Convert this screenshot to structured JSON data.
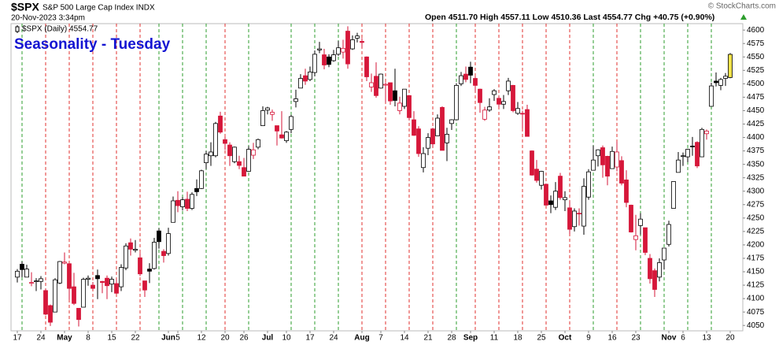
{
  "chart_data": {
    "type": "candlestick",
    "symbol": "$SPX",
    "name": "S&P 500 Large Cap Index INDX",
    "timestamp": "20-Nov-2023 3:34pm",
    "quote": "Open 4511.70 High 4557.11 Low 4510.36 Last 4554.77 Chg +40.75 (+0.90%)",
    "watermark": "© StockCharts.com",
    "legend": "$SPX (Daily) 4554.77",
    "title": "Seasonality - Tuesday",
    "up_color": "#000000",
    "down_color": "#d6173a",
    "last_color": "#f2e34a",
    "title_color": "#1414d2",
    "tuesday_up_color": "#2e9e2e",
    "tuesday_down_color": "#e0302f",
    "ylim": [
      4040,
      4612
    ],
    "yticks": [
      4050,
      4075,
      4100,
      4125,
      4150,
      4175,
      4200,
      4225,
      4250,
      4275,
      4300,
      4325,
      4350,
      4375,
      4400,
      4425,
      4450,
      4475,
      4500,
      4525,
      4550,
      4575,
      4600
    ],
    "tuesdays": [
      1,
      6,
      11,
      16,
      21,
      26,
      30,
      35,
      40,
      44,
      49,
      58,
      63,
      68,
      73,
      78,
      83,
      88,
      93,
      97,
      102,
      107,
      112,
      117,
      122,
      127,
      132,
      137,
      142,
      147
    ],
    "categories": [
      "17",
      null,
      null,
      null,
      null,
      "24",
      null,
      null,
      null,
      null,
      "May",
      null,
      null,
      null,
      null,
      "8",
      null,
      null,
      null,
      null,
      "15",
      null,
      null,
      null,
      null,
      "22",
      null,
      null,
      null,
      null,
      null,
      null,
      "Jun",
      null,
      "5",
      null,
      null,
      null,
      null,
      "12",
      null,
      null,
      null,
      null,
      "20",
      null,
      null,
      null,
      "26",
      null,
      null,
      null,
      null,
      "Jul",
      null,
      null,
      null,
      "10",
      null,
      null,
      null,
      null,
      "17",
      null,
      null,
      null,
      null,
      "24",
      null,
      null,
      null,
      null,
      null,
      "Aug",
      null,
      null,
      null,
      "7",
      null,
      null,
      null,
      null,
      "14",
      null,
      null,
      null,
      null,
      "21",
      null,
      null,
      null,
      null,
      "28",
      null,
      null,
      null,
      "Sep",
      null,
      null,
      null,
      null,
      "11",
      null,
      null,
      null,
      null,
      "18",
      null,
      null,
      null,
      null,
      "25",
      null,
      null,
      null,
      null,
      "Oct",
      null,
      null,
      null,
      null,
      "9",
      null,
      null,
      null,
      null,
      "16",
      null,
      null,
      null,
      null,
      "23",
      null,
      null,
      null,
      null,
      null,
      null,
      "Nov",
      null,
      null,
      "6",
      null,
      null,
      null,
      null,
      "13",
      null,
      null,
      null,
      null,
      "20"
    ],
    "candles": [
      [
        4140,
        4155,
        4130,
        4151
      ],
      [
        4164,
        4169,
        4140,
        4154
      ],
      [
        4140,
        4163,
        4140,
        4155
      ],
      [
        4130,
        4149,
        4123,
        4130
      ],
      [
        4132,
        4138,
        4114,
        4133
      ],
      [
        4132,
        4142,
        4117,
        4137
      ],
      [
        4115,
        4118,
        4069,
        4071
      ],
      [
        4087,
        4089,
        4049,
        4056
      ],
      [
        4075,
        4138,
        4075,
        4135
      ],
      [
        4129,
        4170,
        4127,
        4169
      ],
      [
        4166,
        4186,
        4164,
        4168
      ],
      [
        4165,
        4165,
        4098,
        4119
      ],
      [
        4122,
        4148,
        4088,
        4091
      ],
      [
        4082,
        4082,
        4048,
        4061
      ],
      [
        4084,
        4139,
        4084,
        4136
      ],
      [
        4136,
        4143,
        4124,
        4138
      ],
      [
        4125,
        4131,
        4116,
        4119
      ],
      [
        4143,
        4154,
        4099,
        4137
      ],
      [
        4132,
        4133,
        4110,
        4130
      ],
      [
        4138,
        4143,
        4099,
        4124
      ],
      [
        4127,
        4141,
        4112,
        4136
      ],
      [
        4128,
        4136,
        4109,
        4110
      ],
      [
        4122,
        4164,
        4114,
        4158
      ],
      [
        4157,
        4203,
        4153,
        4198
      ],
      [
        4204,
        4212,
        4180,
        4192
      ],
      [
        4190,
        4209,
        4186,
        4192
      ],
      [
        4176,
        4185,
        4142,
        4146
      ],
      [
        4133,
        4133,
        4103,
        4116
      ],
      [
        4155,
        4166,
        4129,
        4151
      ],
      [
        4156,
        4213,
        4154,
        4205
      ],
      [
        4226,
        4231,
        4193,
        4206
      ],
      [
        4188,
        4192,
        4167,
        4180
      ],
      [
        4184,
        4232,
        4180,
        4221
      ],
      [
        4242,
        4290,
        4242,
        4282
      ],
      [
        4283,
        4300,
        4261,
        4273
      ],
      [
        4271,
        4289,
        4264,
        4284
      ],
      [
        4285,
        4299,
        4263,
        4268
      ],
      [
        4268,
        4298,
        4265,
        4294
      ],
      [
        4305,
        4322,
        4291,
        4299
      ],
      [
        4305,
        4340,
        4304,
        4338
      ],
      [
        4353,
        4375,
        4341,
        4369
      ],
      [
        4366,
        4391,
        4347,
        4373
      ],
      [
        4366,
        4429,
        4363,
        4426
      ],
      [
        4440,
        4448,
        4407,
        4410
      ],
      [
        4396,
        4401,
        4377,
        4389
      ],
      [
        4386,
        4391,
        4347,
        4366
      ],
      [
        4355,
        4383,
        4352,
        4382
      ],
      [
        4355,
        4366,
        4341,
        4348
      ],
      [
        4344,
        4362,
        4328,
        4328
      ],
      [
        4337,
        4384,
        4336,
        4378
      ],
      [
        4367,
        4390,
        4360,
        4377
      ],
      [
        4382,
        4398,
        4378,
        4396
      ],
      [
        4422,
        4458,
        4422,
        4450
      ],
      [
        4451,
        4457,
        4443,
        4455
      ],
      [
        4443,
        4452,
        4431,
        4447
      ],
      [
        4422,
        4422,
        4385,
        4412
      ],
      [
        4405,
        4449,
        4398,
        4399
      ],
      [
        4394,
        4412,
        4390,
        4410
      ],
      [
        4415,
        4442,
        4408,
        4439
      ],
      [
        4467,
        4489,
        4456,
        4472
      ],
      [
        4492,
        4518,
        4492,
        4510
      ],
      [
        4515,
        4528,
        4498,
        4505
      ],
      [
        4508,
        4532,
        4505,
        4522
      ],
      [
        4521,
        4562,
        4514,
        4555
      ],
      [
        4563,
        4578,
        4557,
        4565
      ],
      [
        4554,
        4565,
        4527,
        4535
      ],
      [
        4550,
        4555,
        4531,
        4536
      ],
      [
        4543,
        4563,
        4541,
        4554
      ],
      [
        4555,
        4580,
        4552,
        4567
      ],
      [
        4559,
        4582,
        4547,
        4566
      ],
      [
        4598,
        4607,
        4528,
        4537
      ],
      [
        4565,
        4590,
        4563,
        4582
      ],
      [
        4585,
        4595,
        4577,
        4589
      ],
      [
        4579,
        4585,
        4567,
        4577
      ],
      [
        4550,
        4551,
        4505,
        4513
      ],
      [
        4494,
        4519,
        4485,
        4502
      ],
      [
        4514,
        4540,
        4474,
        4478
      ],
      [
        4492,
        4519,
        4491,
        4518
      ],
      [
        4498,
        4503,
        4465,
        4499
      ],
      [
        4502,
        4502,
        4461,
        4468
      ],
      [
        4487,
        4528,
        4458,
        4469
      ],
      [
        4450,
        4476,
        4443,
        4464
      ],
      [
        4458,
        4490,
        4453,
        4490
      ],
      [
        4478,
        4479,
        4432,
        4437
      ],
      [
        4433,
        4449,
        4403,
        4404
      ],
      [
        4416,
        4421,
        4364,
        4370
      ],
      [
        4344,
        4382,
        4335,
        4370
      ],
      [
        4380,
        4408,
        4367,
        4400
      ],
      [
        4416,
        4418,
        4382,
        4388
      ],
      [
        4403,
        4443,
        4403,
        4436
      ],
      [
        4456,
        4458,
        4376,
        4376
      ],
      [
        4390,
        4418,
        4356,
        4406
      ],
      [
        4426,
        4434,
        4414,
        4433
      ],
      [
        4433,
        4501,
        4432,
        4497
      ],
      [
        4500,
        4522,
        4496,
        4515
      ],
      [
        4518,
        4532,
        4503,
        4508
      ],
      [
        4531,
        4541,
        4501,
        4516
      ],
      [
        4510,
        4514,
        4485,
        4497
      ],
      [
        4490,
        4491,
        4446,
        4465
      ],
      [
        4434,
        4457,
        4431,
        4451
      ],
      [
        4451,
        4473,
        4448,
        4457
      ],
      [
        4480,
        4490,
        4468,
        4487
      ],
      [
        4473,
        4477,
        4456,
        4462
      ],
      [
        4462,
        4479,
        4453,
        4467
      ],
      [
        4487,
        4511,
        4479,
        4505
      ],
      [
        4497,
        4498,
        4447,
        4450
      ],
      [
        4445,
        4466,
        4442,
        4454
      ],
      [
        4445,
        4450,
        4417,
        4444
      ],
      [
        4452,
        4461,
        4402,
        4402
      ],
      [
        4375,
        4376,
        4329,
        4330
      ],
      [
        4341,
        4358,
        4316,
        4320
      ],
      [
        4311,
        4338,
        4303,
        4337
      ],
      [
        4313,
        4313,
        4274,
        4274
      ],
      [
        4282,
        4292,
        4259,
        4275
      ],
      [
        4270,
        4317,
        4265,
        4300
      ],
      [
        4328,
        4334,
        4284,
        4288
      ],
      [
        4284,
        4300,
        4263,
        4288
      ],
      [
        4269,
        4281,
        4220,
        4229
      ],
      [
        4234,
        4268,
        4225,
        4263
      ],
      [
        4259,
        4268,
        4236,
        4258
      ],
      [
        4235,
        4324,
        4219,
        4309
      ],
      [
        4289,
        4341,
        4284,
        4336
      ],
      [
        4339,
        4385,
        4339,
        4358
      ],
      [
        4366,
        4378,
        4346,
        4377
      ],
      [
        4381,
        4385,
        4325,
        4349
      ],
      [
        4365,
        4366,
        4311,
        4328
      ],
      [
        4342,
        4383,
        4342,
        4374
      ],
      [
        4345,
        4393,
        4337,
        4373
      ],
      [
        4357,
        4365,
        4311,
        4315
      ],
      [
        4321,
        4339,
        4270,
        4279
      ],
      [
        4274,
        4275,
        4223,
        4224
      ],
      [
        4210,
        4256,
        4190,
        4217
      ],
      [
        4236,
        4259,
        4219,
        4248
      ],
      [
        4232,
        4232,
        4181,
        4186
      ],
      [
        4175,
        4183,
        4128,
        4137
      ],
      [
        4152,
        4156,
        4103,
        4117
      ],
      [
        4140,
        4175,
        4132,
        4167
      ],
      [
        4172,
        4194,
        4154,
        4194
      ],
      [
        4201,
        4245,
        4197,
        4238
      ],
      [
        4268,
        4318,
        4268,
        4318
      ],
      [
        4335,
        4373,
        4335,
        4358
      ],
      [
        4365,
        4372,
        4347,
        4366
      ],
      [
        4364,
        4379,
        4354,
        4378
      ],
      [
        4384,
        4401,
        4366,
        4383
      ],
      [
        4391,
        4393,
        4343,
        4347
      ],
      [
        4364,
        4418,
        4364,
        4415
      ],
      [
        4407,
        4415,
        4396,
        4412
      ],
      [
        4458,
        4502,
        4458,
        4496
      ],
      [
        4505,
        4521,
        4495,
        4502
      ],
      [
        4497,
        4511,
        4488,
        4508
      ],
      [
        4510,
        4520,
        4496,
        4514
      ],
      [
        4511.7,
        4557.11,
        4510.36,
        4554.77
      ]
    ]
  }
}
